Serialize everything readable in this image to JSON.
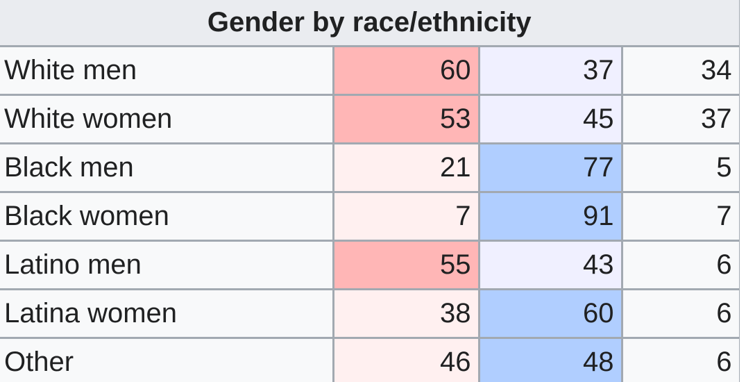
{
  "title": "Gender by race/ethnicity",
  "colors": {
    "rep_strong": "#ffb6b6",
    "rep_light": "#fff0f0",
    "dem_strong": "#b0ceff",
    "dem_light": "#f0f0ff",
    "neutral": "#f8f9fa",
    "header_bg": "#eaecf0",
    "border": "#a2a9b1"
  },
  "rows": [
    {
      "label": "White men",
      "rep": "60",
      "dem": "37",
      "pct": "34"
    },
    {
      "label": "White women",
      "rep": "53",
      "dem": "45",
      "pct": "37"
    },
    {
      "label": "Black men",
      "rep": "21",
      "dem": "77",
      "pct": "5"
    },
    {
      "label": "Black women",
      "rep": "7",
      "dem": "91",
      "pct": "7"
    },
    {
      "label": "Latino men",
      "rep": "55",
      "dem": "43",
      "pct": "6"
    },
    {
      "label": "Latina women",
      "rep": "38",
      "dem": "60",
      "pct": "6"
    },
    {
      "label": "Other",
      "rep": "46",
      "dem": "48",
      "pct": "6"
    }
  ]
}
